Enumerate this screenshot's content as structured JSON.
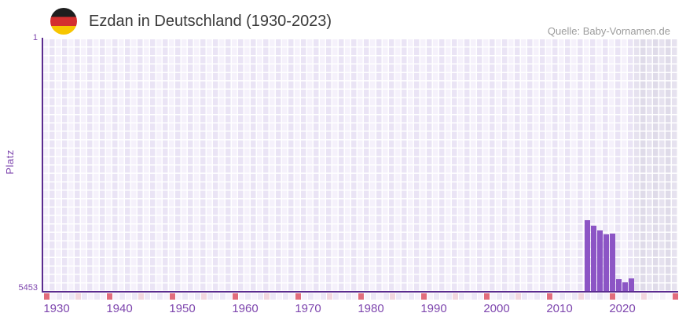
{
  "header": {
    "title": "Ezdan in Deutschland (1930-2023)",
    "source": "Quelle: Baby-Vornamen.de"
  },
  "y_axis": {
    "label": "Platz",
    "top_tick": "1",
    "bottom_tick": "5453"
  },
  "x_axis": {
    "tick_labels": [
      "1930",
      "1940",
      "1950",
      "1960",
      "1970",
      "1980",
      "1990",
      "2000",
      "2010",
      "2020"
    ]
  },
  "chart_data": {
    "type": "bar",
    "title": "Ezdan in Deutschland (1930-2023)",
    "source": "Quelle: Baby-Vornamen.de",
    "ylabel": "Platz",
    "xlabel": "",
    "y_axis_inverted": true,
    "ylim": [
      1,
      5453
    ],
    "x_display_range": [
      1930,
      2030
    ],
    "data_year_range": [
      1930,
      2023
    ],
    "future_region_start": 2024,
    "x_tick_years": [
      1930,
      1940,
      1950,
      1960,
      1970,
      1980,
      1990,
      2000,
      2010,
      2020
    ],
    "grid": "checkerboard",
    "decade_marker_years": [
      1930,
      1940,
      1950,
      1960,
      1970,
      1980,
      1990,
      2000,
      2010,
      2020,
      2030
    ],
    "half_decade_marker_years": [
      1935,
      1945,
      1955,
      1965,
      1975,
      1985,
      1995,
      2005,
      2015,
      2025
    ],
    "series": [
      {
        "name": "Platz von Ezdan",
        "points": [
          {
            "year": 2016,
            "rank": 3900
          },
          {
            "year": 2017,
            "rank": 4025
          },
          {
            "year": 2018,
            "rank": 4120
          },
          {
            "year": 2019,
            "rank": 4210
          },
          {
            "year": 2020,
            "rank": 4195
          },
          {
            "year": 2021,
            "rank": 5180
          },
          {
            "year": 2022,
            "rank": 5250
          },
          {
            "year": 2023,
            "rank": 5170
          }
        ]
      }
    ]
  },
  "colors": {
    "bar": "#8c55c5",
    "axis": "#5b2c8f",
    "tick_label": "#7e46ae",
    "title_text": "#3a3a3a",
    "source_text": "#9c9c9c",
    "cell_light": "#f5f1fb",
    "cell_dark": "#eae4f5",
    "future_cell_light": "#e6e2ef",
    "future_cell_dark": "#dfdbe9",
    "grid_gap": "#ffffff",
    "marker_decade": "#e16c7c",
    "marker_half_decade": "#f2d6de",
    "strip_cell_even": "#ece7f6",
    "strip_cell_odd": "#f6f2fb",
    "strip_future_even": "#f4f2f8",
    "strip_future_odd": "#faf9fc",
    "flag_black": "#1e1e1e",
    "flag_red": "#d42f2f",
    "flag_gold": "#f7c600"
  }
}
